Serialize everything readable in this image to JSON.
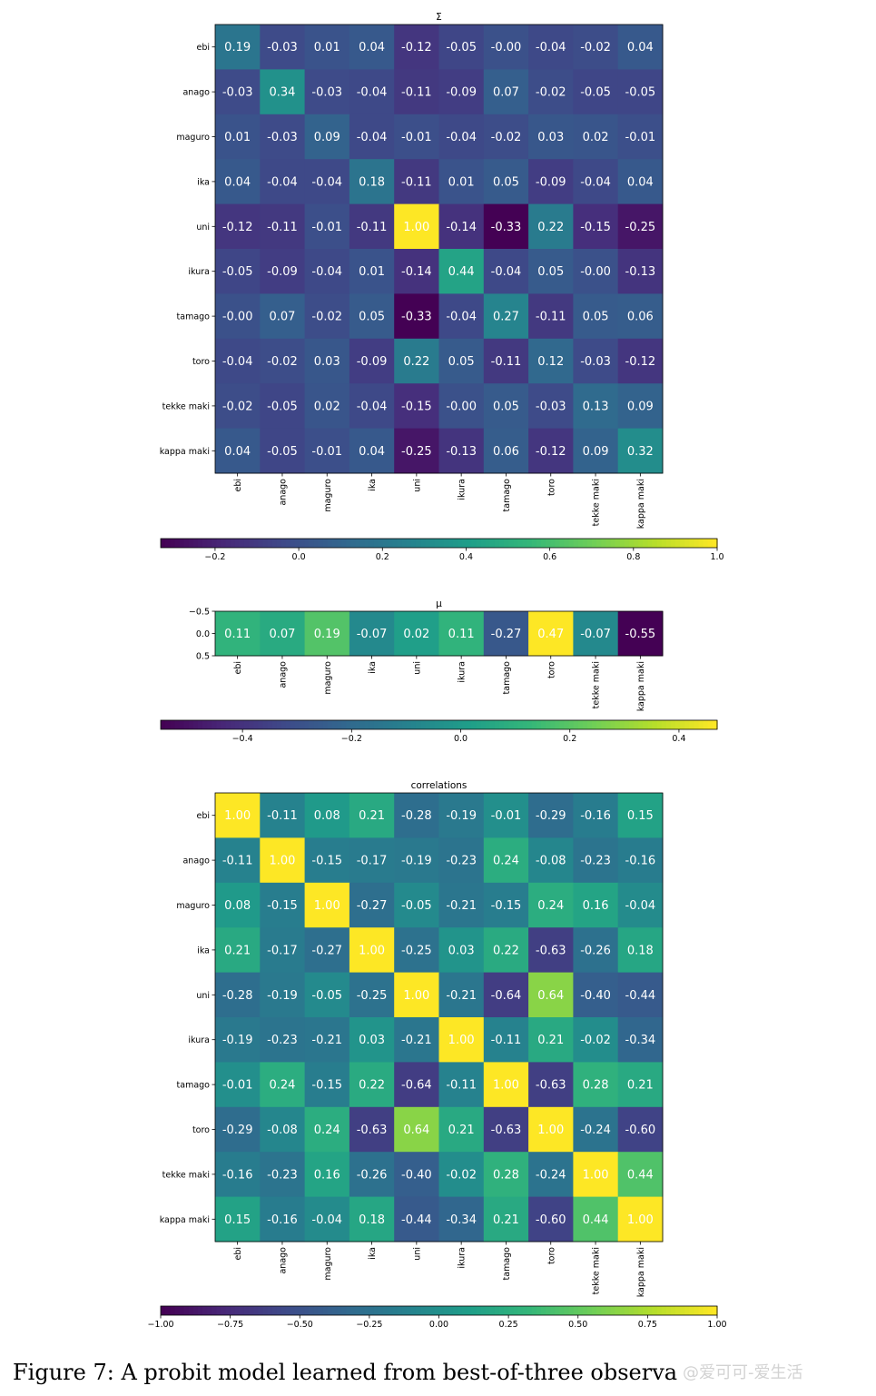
{
  "caption": "Figure 7: A probit model learned from best-of-three observa",
  "watermark": "@爱可可-爱生活",
  "chart_data": [
    {
      "type": "heatmap",
      "title": "Σ",
      "rows": [
        "ebi",
        "anago",
        "maguro",
        "ika",
        "uni",
        "ikura",
        "tamago",
        "toro",
        "tekke maki",
        "kappa maki"
      ],
      "cols": [
        "ebi",
        "anago",
        "maguro",
        "ika",
        "uni",
        "ikura",
        "tamago",
        "toro",
        "tekke maki",
        "kappa maki"
      ],
      "values": [
        [
          0.19,
          -0.03,
          0.01,
          0.04,
          -0.12,
          -0.05,
          -0.0,
          -0.04,
          -0.02,
          0.04
        ],
        [
          -0.03,
          0.34,
          -0.03,
          -0.04,
          -0.11,
          -0.09,
          0.07,
          -0.02,
          -0.05,
          -0.05
        ],
        [
          0.01,
          -0.03,
          0.09,
          -0.04,
          -0.01,
          -0.04,
          -0.02,
          0.03,
          0.02,
          -0.01
        ],
        [
          0.04,
          -0.04,
          -0.04,
          0.18,
          -0.11,
          0.01,
          0.05,
          -0.09,
          -0.04,
          0.04
        ],
        [
          -0.12,
          -0.11,
          -0.01,
          -0.11,
          1.0,
          -0.14,
          -0.33,
          0.22,
          -0.15,
          -0.25
        ],
        [
          -0.05,
          -0.09,
          -0.04,
          0.01,
          -0.14,
          0.44,
          -0.04,
          0.05,
          -0.0,
          -0.13
        ],
        [
          -0.0,
          0.07,
          -0.02,
          0.05,
          -0.33,
          -0.04,
          0.27,
          -0.11,
          0.05,
          0.06
        ],
        [
          -0.04,
          -0.02,
          0.03,
          -0.09,
          0.22,
          0.05,
          -0.11,
          0.12,
          -0.03,
          -0.12
        ],
        [
          -0.02,
          -0.05,
          0.02,
          -0.04,
          -0.15,
          -0.0,
          0.05,
          -0.03,
          0.13,
          0.09
        ],
        [
          0.04,
          -0.05,
          -0.01,
          0.04,
          -0.25,
          -0.13,
          0.06,
          -0.12,
          0.09,
          0.32
        ]
      ],
      "labels": [
        [
          "0.19",
          "-0.03",
          "0.01",
          "0.04",
          "-0.12",
          "-0.05",
          "-0.00",
          "-0.04",
          "-0.02",
          "0.04"
        ],
        [
          "-0.03",
          "0.34",
          "-0.03",
          "-0.04",
          "-0.11",
          "-0.09",
          "0.07",
          "-0.02",
          "-0.05",
          "-0.05"
        ],
        [
          "0.01",
          "-0.03",
          "0.09",
          "-0.04",
          "-0.01",
          "-0.04",
          "-0.02",
          "0.03",
          "0.02",
          "-0.01"
        ],
        [
          "0.04",
          "-0.04",
          "-0.04",
          "0.18",
          "-0.11",
          "0.01",
          "0.05",
          "-0.09",
          "-0.04",
          "0.04"
        ],
        [
          "-0.12",
          "-0.11",
          "-0.01",
          "-0.11",
          "1.00",
          "-0.14",
          "-0.33",
          "0.22",
          "-0.15",
          "-0.25"
        ],
        [
          "-0.05",
          "-0.09",
          "-0.04",
          "0.01",
          "-0.14",
          "0.44",
          "-0.04",
          "0.05",
          "-0.00",
          "-0.13"
        ],
        [
          "-0.00",
          "0.07",
          "-0.02",
          "0.05",
          "-0.33",
          "-0.04",
          "0.27",
          "-0.11",
          "0.05",
          "0.06"
        ],
        [
          "-0.04",
          "-0.02",
          "0.03",
          "-0.09",
          "0.22",
          "0.05",
          "-0.11",
          "0.12",
          "-0.03",
          "-0.12"
        ],
        [
          "-0.02",
          "-0.05",
          "0.02",
          "-0.04",
          "-0.15",
          "-0.00",
          "0.05",
          "-0.03",
          "0.13",
          "0.09"
        ],
        [
          "0.04",
          "-0.05",
          "-0.01",
          "0.04",
          "-0.25",
          "-0.13",
          "0.06",
          "-0.12",
          "0.09",
          "0.32"
        ]
      ],
      "vmin": -0.33,
      "vmax": 1.0,
      "colorbar_ticks": [
        -0.2,
        0.0,
        0.2,
        0.4,
        0.6,
        0.8,
        1.0
      ],
      "colorbar_tick_labels": [
        "−0.2",
        "0.0",
        "0.2",
        "0.4",
        "0.6",
        "0.8",
        "1.0"
      ],
      "colormap": "viridis"
    },
    {
      "type": "heatmap",
      "title": "μ",
      "rows": [],
      "ytick_labels": [
        "−0.5",
        "0.0",
        "0.5"
      ],
      "cols": [
        "ebi",
        "anago",
        "maguro",
        "ika",
        "uni",
        "ikura",
        "tamago",
        "toro",
        "tekke maki",
        "kappa maki"
      ],
      "values": [
        [
          0.11,
          0.07,
          0.19,
          -0.07,
          0.02,
          0.11,
          -0.27,
          0.47,
          -0.07,
          -0.55
        ]
      ],
      "labels": [
        [
          "0.11",
          "0.07",
          "0.19",
          "-0.07",
          "0.02",
          "0.11",
          "-0.27",
          "0.47",
          "-0.07",
          "-0.55"
        ]
      ],
      "vmin": -0.55,
      "vmax": 0.47,
      "colorbar_ticks": [
        -0.4,
        -0.2,
        0.0,
        0.2,
        0.4
      ],
      "colorbar_tick_labels": [
        "−0.4",
        "−0.2",
        "0.0",
        "0.2",
        "0.4"
      ],
      "colormap": "viridis"
    },
    {
      "type": "heatmap",
      "title": "correlations",
      "rows": [
        "ebi",
        "anago",
        "maguro",
        "ika",
        "uni",
        "ikura",
        "tamago",
        "toro",
        "tekke maki",
        "kappa maki"
      ],
      "cols": [
        "ebi",
        "anago",
        "maguro",
        "ika",
        "uni",
        "ikura",
        "tamago",
        "toro",
        "tekke maki",
        "kappa maki"
      ],
      "values": [
        [
          1.0,
          -0.11,
          0.08,
          0.21,
          -0.28,
          -0.19,
          -0.01,
          -0.29,
          -0.16,
          0.15
        ],
        [
          -0.11,
          1.0,
          -0.15,
          -0.17,
          -0.19,
          -0.23,
          0.24,
          -0.08,
          -0.23,
          -0.16
        ],
        [
          0.08,
          -0.15,
          1.0,
          -0.27,
          -0.05,
          -0.21,
          -0.15,
          0.24,
          0.16,
          -0.04
        ],
        [
          0.21,
          -0.17,
          -0.27,
          1.0,
          -0.25,
          0.03,
          0.22,
          -0.63,
          -0.26,
          0.18
        ],
        [
          -0.28,
          -0.19,
          -0.05,
          -0.25,
          1.0,
          -0.21,
          -0.64,
          0.64,
          -0.4,
          -0.44
        ],
        [
          -0.19,
          -0.23,
          -0.21,
          0.03,
          -0.21,
          1.0,
          -0.11,
          0.21,
          -0.02,
          -0.34
        ],
        [
          -0.01,
          0.24,
          -0.15,
          0.22,
          -0.64,
          -0.11,
          1.0,
          -0.63,
          0.28,
          0.21
        ],
        [
          -0.29,
          -0.08,
          0.24,
          -0.63,
          0.64,
          0.21,
          -0.63,
          1.0,
          -0.24,
          -0.6
        ],
        [
          -0.16,
          -0.23,
          0.16,
          -0.26,
          -0.4,
          -0.02,
          0.28,
          -0.24,
          1.0,
          0.44
        ],
        [
          0.15,
          -0.16,
          -0.04,
          0.18,
          -0.44,
          -0.34,
          0.21,
          -0.6,
          0.44,
          1.0
        ]
      ],
      "labels": [
        [
          "1.00",
          "-0.11",
          "0.08",
          "0.21",
          "-0.28",
          "-0.19",
          "-0.01",
          "-0.29",
          "-0.16",
          "0.15"
        ],
        [
          "-0.11",
          "1.00",
          "-0.15",
          "-0.17",
          "-0.19",
          "-0.23",
          "0.24",
          "-0.08",
          "-0.23",
          "-0.16"
        ],
        [
          "0.08",
          "-0.15",
          "1.00",
          "-0.27",
          "-0.05",
          "-0.21",
          "-0.15",
          "0.24",
          "0.16",
          "-0.04"
        ],
        [
          "0.21",
          "-0.17",
          "-0.27",
          "1.00",
          "-0.25",
          "0.03",
          "0.22",
          "-0.63",
          "-0.26",
          "0.18"
        ],
        [
          "-0.28",
          "-0.19",
          "-0.05",
          "-0.25",
          "1.00",
          "-0.21",
          "-0.64",
          "0.64",
          "-0.40",
          "-0.44"
        ],
        [
          "-0.19",
          "-0.23",
          "-0.21",
          "0.03",
          "-0.21",
          "1.00",
          "-0.11",
          "0.21",
          "-0.02",
          "-0.34"
        ],
        [
          "-0.01",
          "0.24",
          "-0.15",
          "0.22",
          "-0.64",
          "-0.11",
          "1.00",
          "-0.63",
          "0.28",
          "0.21"
        ],
        [
          "-0.29",
          "-0.08",
          "0.24",
          "-0.63",
          "0.64",
          "0.21",
          "-0.63",
          "1.00",
          "-0.24",
          "-0.60"
        ],
        [
          "-0.16",
          "-0.23",
          "0.16",
          "-0.26",
          "-0.40",
          "-0.02",
          "0.28",
          "-0.24",
          "1.00",
          "0.44"
        ],
        [
          "0.15",
          "-0.16",
          "-0.04",
          "0.18",
          "-0.44",
          "-0.34",
          "0.21",
          "-0.60",
          "0.44",
          "1.00"
        ]
      ],
      "vmin": -1.0,
      "vmax": 1.0,
      "colorbar_ticks": [
        -1.0,
        -0.75,
        -0.5,
        -0.25,
        0.0,
        0.25,
        0.5,
        0.75,
        1.0
      ],
      "colorbar_tick_labels": [
        "−1.00",
        "−0.75",
        "−0.50",
        "−0.25",
        "0.00",
        "0.25",
        "0.50",
        "0.75",
        "1.00"
      ],
      "colormap": "viridis"
    }
  ]
}
